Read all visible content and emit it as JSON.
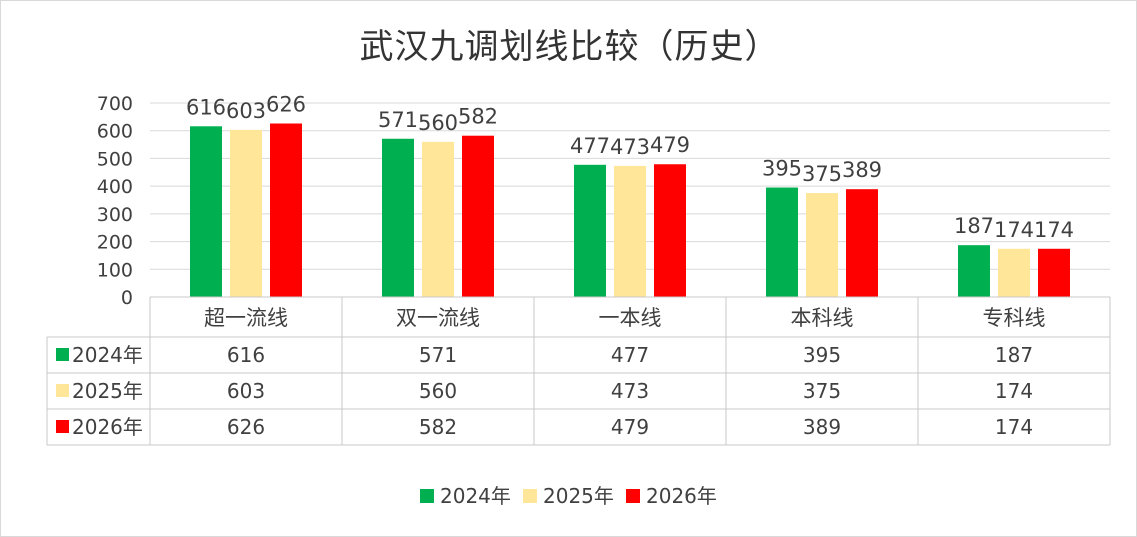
{
  "chart_data": {
    "type": "bar",
    "title": "武汉九调划线比较（历史）",
    "categories": [
      "超一流线",
      "双一流线",
      "一本线",
      "本科线",
      "专科线"
    ],
    "series": [
      {
        "name": "2024年",
        "values": [
          616,
          571,
          477,
          395,
          187
        ],
        "color": "#00b050"
      },
      {
        "name": "2025年",
        "values": [
          603,
          560,
          473,
          375,
          174
        ],
        "color": "#ffe699"
      },
      {
        "name": "2026年",
        "values": [
          626,
          582,
          479,
          389,
          174
        ],
        "color": "#ff0000"
      }
    ],
    "yticks": [
      "0",
      "100",
      "200",
      "300",
      "400",
      "500",
      "600",
      "700"
    ],
    "ylim": [
      0,
      700
    ],
    "grid": true,
    "data_table": true,
    "legend": "bottom"
  }
}
